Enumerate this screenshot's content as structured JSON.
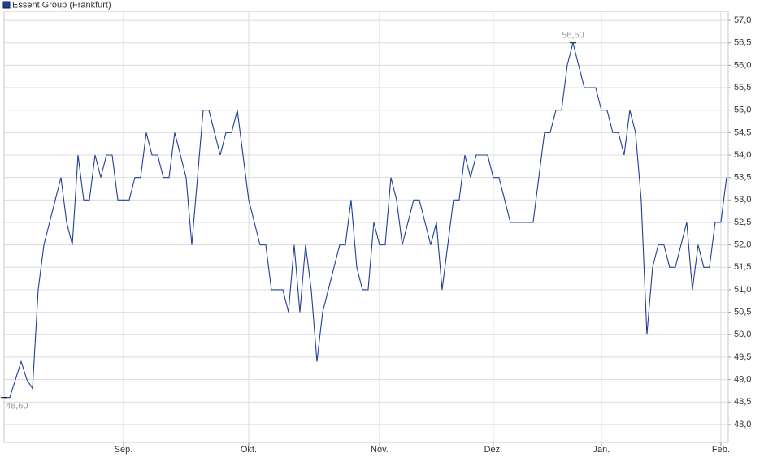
{
  "chart_data": {
    "type": "line",
    "legend": "Essent Group (Frankfurt)",
    "x": [
      0,
      1,
      2,
      3,
      4,
      5,
      6,
      7,
      8,
      9,
      10,
      11,
      12,
      13,
      14,
      15,
      16,
      17,
      18,
      19,
      20,
      21,
      22,
      23,
      24,
      25,
      26,
      27,
      28,
      29,
      30,
      31,
      32,
      33,
      34,
      35,
      36,
      37,
      38,
      39,
      40,
      41,
      42,
      43,
      44,
      45,
      46,
      47,
      48,
      49,
      50,
      51,
      52,
      53,
      54,
      55,
      56,
      57,
      58,
      59,
      60,
      61,
      62,
      63,
      64,
      65,
      66,
      67,
      68,
      69,
      70,
      71,
      72,
      73,
      74,
      75,
      76,
      77,
      78,
      79,
      80,
      81,
      82,
      83,
      84,
      85,
      86,
      87,
      88,
      89,
      90,
      91,
      92,
      93,
      94,
      95,
      96,
      97,
      98,
      99,
      100,
      101,
      102,
      103,
      104,
      105,
      106,
      107,
      108,
      109,
      110,
      111,
      112,
      113,
      114,
      115,
      116,
      117,
      118,
      119,
      120,
      121,
      122,
      123,
      124,
      125,
      126,
      127
    ],
    "series": [
      {
        "name": "Essent Group (Frankfurt)",
        "color": "#1f3f99",
        "values": [
          48.6,
          48.6,
          49.0,
          49.4,
          49.0,
          48.8,
          51.0,
          52.0,
          52.5,
          53.0,
          53.5,
          52.5,
          52.0,
          54.0,
          53.0,
          53.0,
          54.0,
          53.5,
          54.0,
          54.0,
          53.0,
          53.0,
          53.0,
          53.5,
          53.5,
          54.5,
          54.0,
          54.0,
          53.5,
          53.5,
          54.5,
          54.0,
          53.5,
          52.0,
          53.5,
          55.0,
          55.0,
          54.5,
          54.0,
          54.5,
          54.5,
          55.0,
          54.0,
          53.0,
          52.5,
          52.0,
          52.0,
          51.0,
          51.0,
          51.0,
          50.5,
          52.0,
          50.5,
          52.0,
          51.0,
          49.4,
          50.5,
          51.0,
          51.5,
          52.0,
          52.0,
          53.0,
          51.5,
          51.0,
          51.0,
          52.5,
          52.0,
          52.0,
          53.5,
          53.0,
          52.0,
          52.5,
          53.0,
          53.0,
          52.5,
          52.0,
          52.5,
          51.0,
          52.0,
          53.0,
          53.0,
          54.0,
          53.5,
          54.0,
          54.0,
          54.0,
          53.5,
          53.5,
          53.0,
          52.5,
          52.5,
          52.5,
          52.5,
          52.5,
          53.5,
          54.5,
          54.5,
          55.0,
          55.0,
          56.0,
          56.5,
          56.0,
          55.5,
          55.5,
          55.5,
          55.0,
          55.0,
          54.5,
          54.5,
          54.0,
          55.0,
          54.5,
          53.0,
          50.0,
          51.5,
          52.0,
          52.0,
          51.5,
          51.5,
          52.0,
          52.5,
          51.0,
          52.0,
          51.5,
          51.5,
          52.5,
          52.5,
          53.5
        ]
      }
    ],
    "annotations": [
      {
        "label": "56,50",
        "x": 100,
        "value": 56.5
      },
      {
        "label": "48,60",
        "x": 0,
        "value": 48.6
      }
    ],
    "xlim": [
      0,
      127.3
    ],
    "xticks": [
      {
        "value": 21,
        "label": "Sep."
      },
      {
        "value": 43,
        "label": "Okt."
      },
      {
        "value": 66,
        "label": "Nov."
      },
      {
        "value": 86,
        "label": "Dez."
      },
      {
        "value": 105,
        "label": "Jan."
      },
      {
        "value": 126,
        "label": "Feb."
      }
    ],
    "ylim": [
      47.6,
      57.2
    ],
    "yticks": [
      {
        "value": 48.0,
        "label": "48,0"
      },
      {
        "value": 48.5,
        "label": "48,5"
      },
      {
        "value": 49.0,
        "label": "49,0"
      },
      {
        "value": 49.5,
        "label": "49,5"
      },
      {
        "value": 50.0,
        "label": "50,0"
      },
      {
        "value": 50.5,
        "label": "50,5"
      },
      {
        "value": 51.0,
        "label": "51,0"
      },
      {
        "value": 51.5,
        "label": "51,5"
      },
      {
        "value": 52.0,
        "label": "52,0"
      },
      {
        "value": 52.5,
        "label": "52,5"
      },
      {
        "value": 53.0,
        "label": "53,0"
      },
      {
        "value": 53.5,
        "label": "53,5"
      },
      {
        "value": 54.0,
        "label": "54,0"
      },
      {
        "value": 54.5,
        "label": "54,5"
      },
      {
        "value": 55.0,
        "label": "55,0"
      },
      {
        "value": 55.5,
        "label": "55,5"
      },
      {
        "value": 56.0,
        "label": "56,0"
      },
      {
        "value": 56.5,
        "label": "56,5"
      },
      {
        "value": 57.0,
        "label": "57,0"
      }
    ],
    "grid": true
  }
}
